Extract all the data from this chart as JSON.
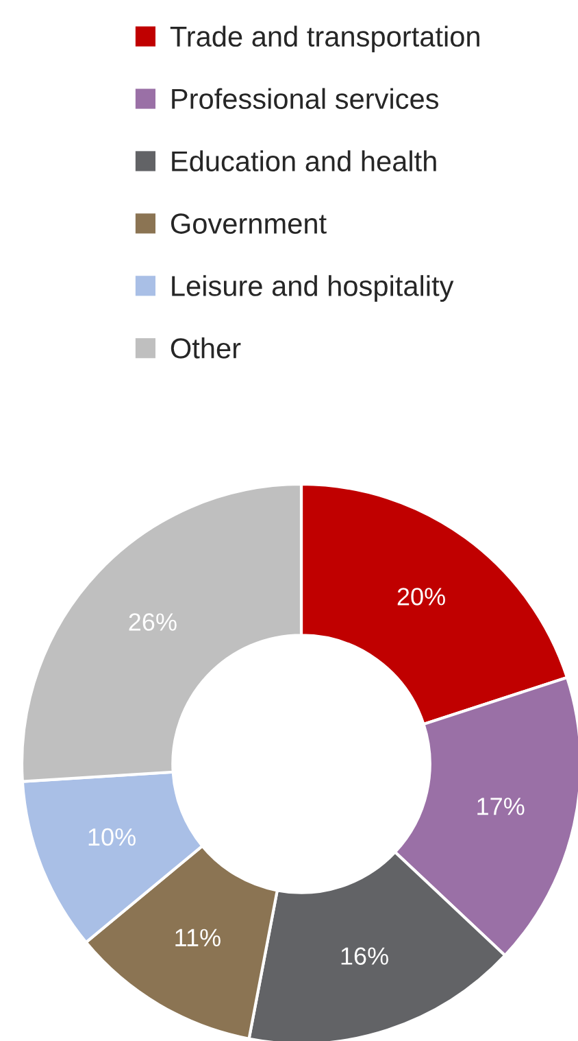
{
  "chart_data": {
    "type": "donut",
    "categories": [
      "Trade and transportation",
      "Professional services",
      "Education and health",
      "Government",
      "Leisure and hospitality",
      "Other"
    ],
    "values": [
      20,
      17,
      16,
      11,
      10,
      26
    ],
    "colors": [
      "#c00000",
      "#9a70a6",
      "#626366",
      "#8b7453",
      "#a9bfe6",
      "#bfbfbf"
    ],
    "value_labels": [
      "20%",
      "17%",
      "16%",
      "11%",
      "10%",
      "26%"
    ],
    "legend": "top"
  }
}
